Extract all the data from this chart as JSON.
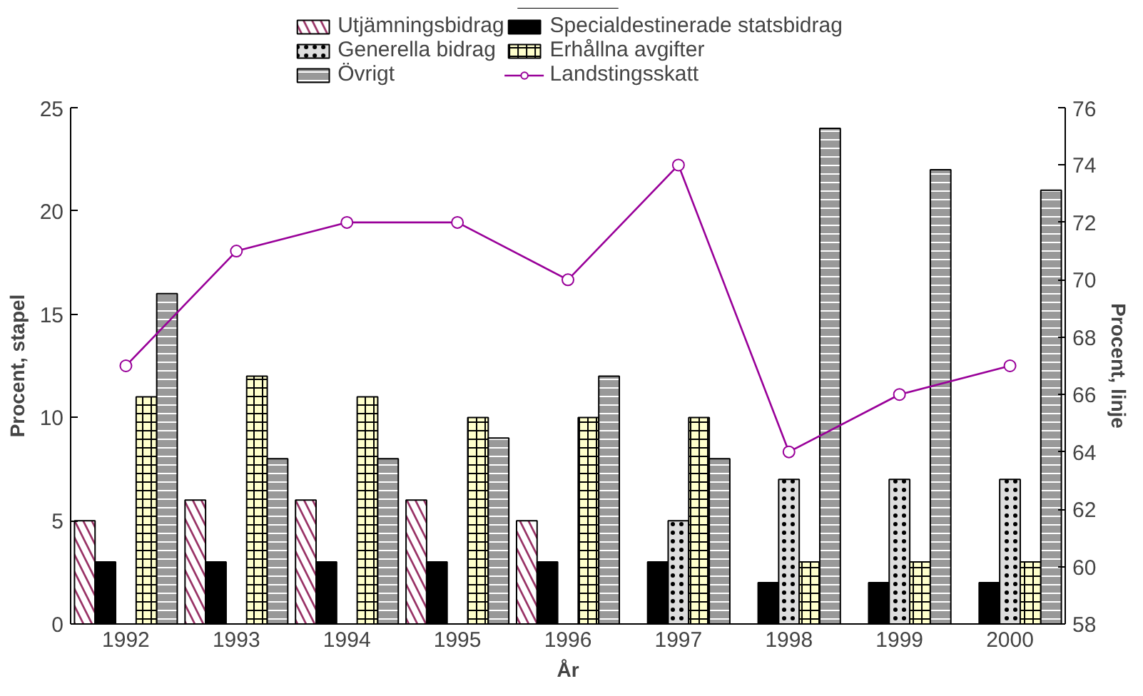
{
  "chart_data": {
    "type": "bar",
    "xlabel": "År",
    "ylabel": "Procent, stapel",
    "y2label": "Procent, linje",
    "categories": [
      "1992",
      "1993",
      "1994",
      "1995",
      "1996",
      "1997",
      "1998",
      "1999",
      "2000"
    ],
    "series": [
      {
        "name": "Utjämningsbidrag",
        "color": "#993366",
        "values": [
          5,
          6,
          6,
          6,
          5,
          null,
          null,
          null,
          null
        ]
      },
      {
        "name": "Specialdestinerade statsbidrag",
        "color": "#000000",
        "values": [
          3,
          3,
          3,
          3,
          3,
          3,
          2,
          2,
          2
        ]
      },
      {
        "name": "Generella bidrag",
        "color": "#dddddd",
        "values": [
          null,
          null,
          null,
          null,
          null,
          5,
          7,
          7,
          7
        ]
      },
      {
        "name": "Erhållna avgifter",
        "color": "#ffffcc",
        "values": [
          11,
          12,
          11,
          10,
          10,
          10,
          3,
          3,
          3
        ]
      },
      {
        "name": "Övrigt",
        "color": "#999999",
        "values": [
          16,
          8,
          8,
          9,
          12,
          8,
          24,
          22,
          21
        ]
      },
      {
        "name": "Landstingsskatt",
        "type": "line",
        "axis": "y2",
        "color": "#990099",
        "marker": "circle",
        "values": [
          67,
          71,
          72,
          72,
          70,
          74,
          64,
          66,
          67
        ]
      }
    ],
    "ylim": [
      0,
      25
    ],
    "yticks": [
      0,
      5,
      10,
      15,
      20,
      25
    ],
    "y2lim": [
      58,
      76
    ],
    "y2ticks": [
      58,
      60,
      62,
      64,
      66,
      68,
      70,
      72,
      74,
      76
    ],
    "grid": false,
    "legend": "top"
  }
}
